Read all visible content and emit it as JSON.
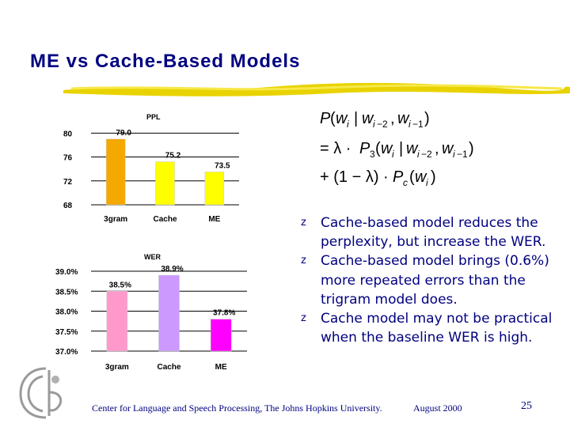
{
  "slide": {
    "title": "ME vs Cache-Based Models",
    "footer_left": "Center for Language and Speech Processing, The Johns Hopkins University.",
    "footer_date": "August 2000",
    "page_number": "25"
  },
  "bullets": [
    "Cache-based model reduces the perplexity, but increase the WER.",
    "Cache-based model brings (0.6%) more repeated errors than the trigram model does.",
    "Cache model may not be practical when the baseline WER is high."
  ],
  "bullet_marker": "z",
  "colors": {
    "title": "#000080",
    "text": "#000080",
    "ppl_3gram": "#F5A800",
    "ppl_cache": "#FFFF00",
    "ppl_me": "#FFFF00",
    "wer_3gram": "#FF99CC",
    "wer_cache": "#CC99FF",
    "wer_me": "#FF00FF"
  },
  "chart_data": [
    {
      "type": "bar",
      "title": "PPL",
      "categories": [
        "3gram",
        "Cache",
        "ME"
      ],
      "values": [
        79.0,
        75.2,
        73.5
      ],
      "data_labels": [
        "79.0",
        "75.2",
        "73.5"
      ],
      "yticks": [
        "80",
        "76",
        "72",
        "68"
      ],
      "ytick_values": [
        80,
        76,
        72,
        68
      ],
      "ylim": [
        68,
        81.5
      ],
      "grid": true
    },
    {
      "type": "bar",
      "title": "WER",
      "categories": [
        "3gram",
        "Cache",
        "ME"
      ],
      "values": [
        38.5,
        38.9,
        37.8
      ],
      "data_labels": [
        "38.5%",
        "38.9%",
        "37.8%"
      ],
      "yticks": [
        "39.0%",
        "38.5%",
        "38.0%",
        "37.5%",
        "37.0%"
      ],
      "ytick_values": [
        39.0,
        38.5,
        38.0,
        37.5,
        37.0
      ],
      "ylim": [
        37.0,
        39.0
      ],
      "grid": true
    }
  ]
}
